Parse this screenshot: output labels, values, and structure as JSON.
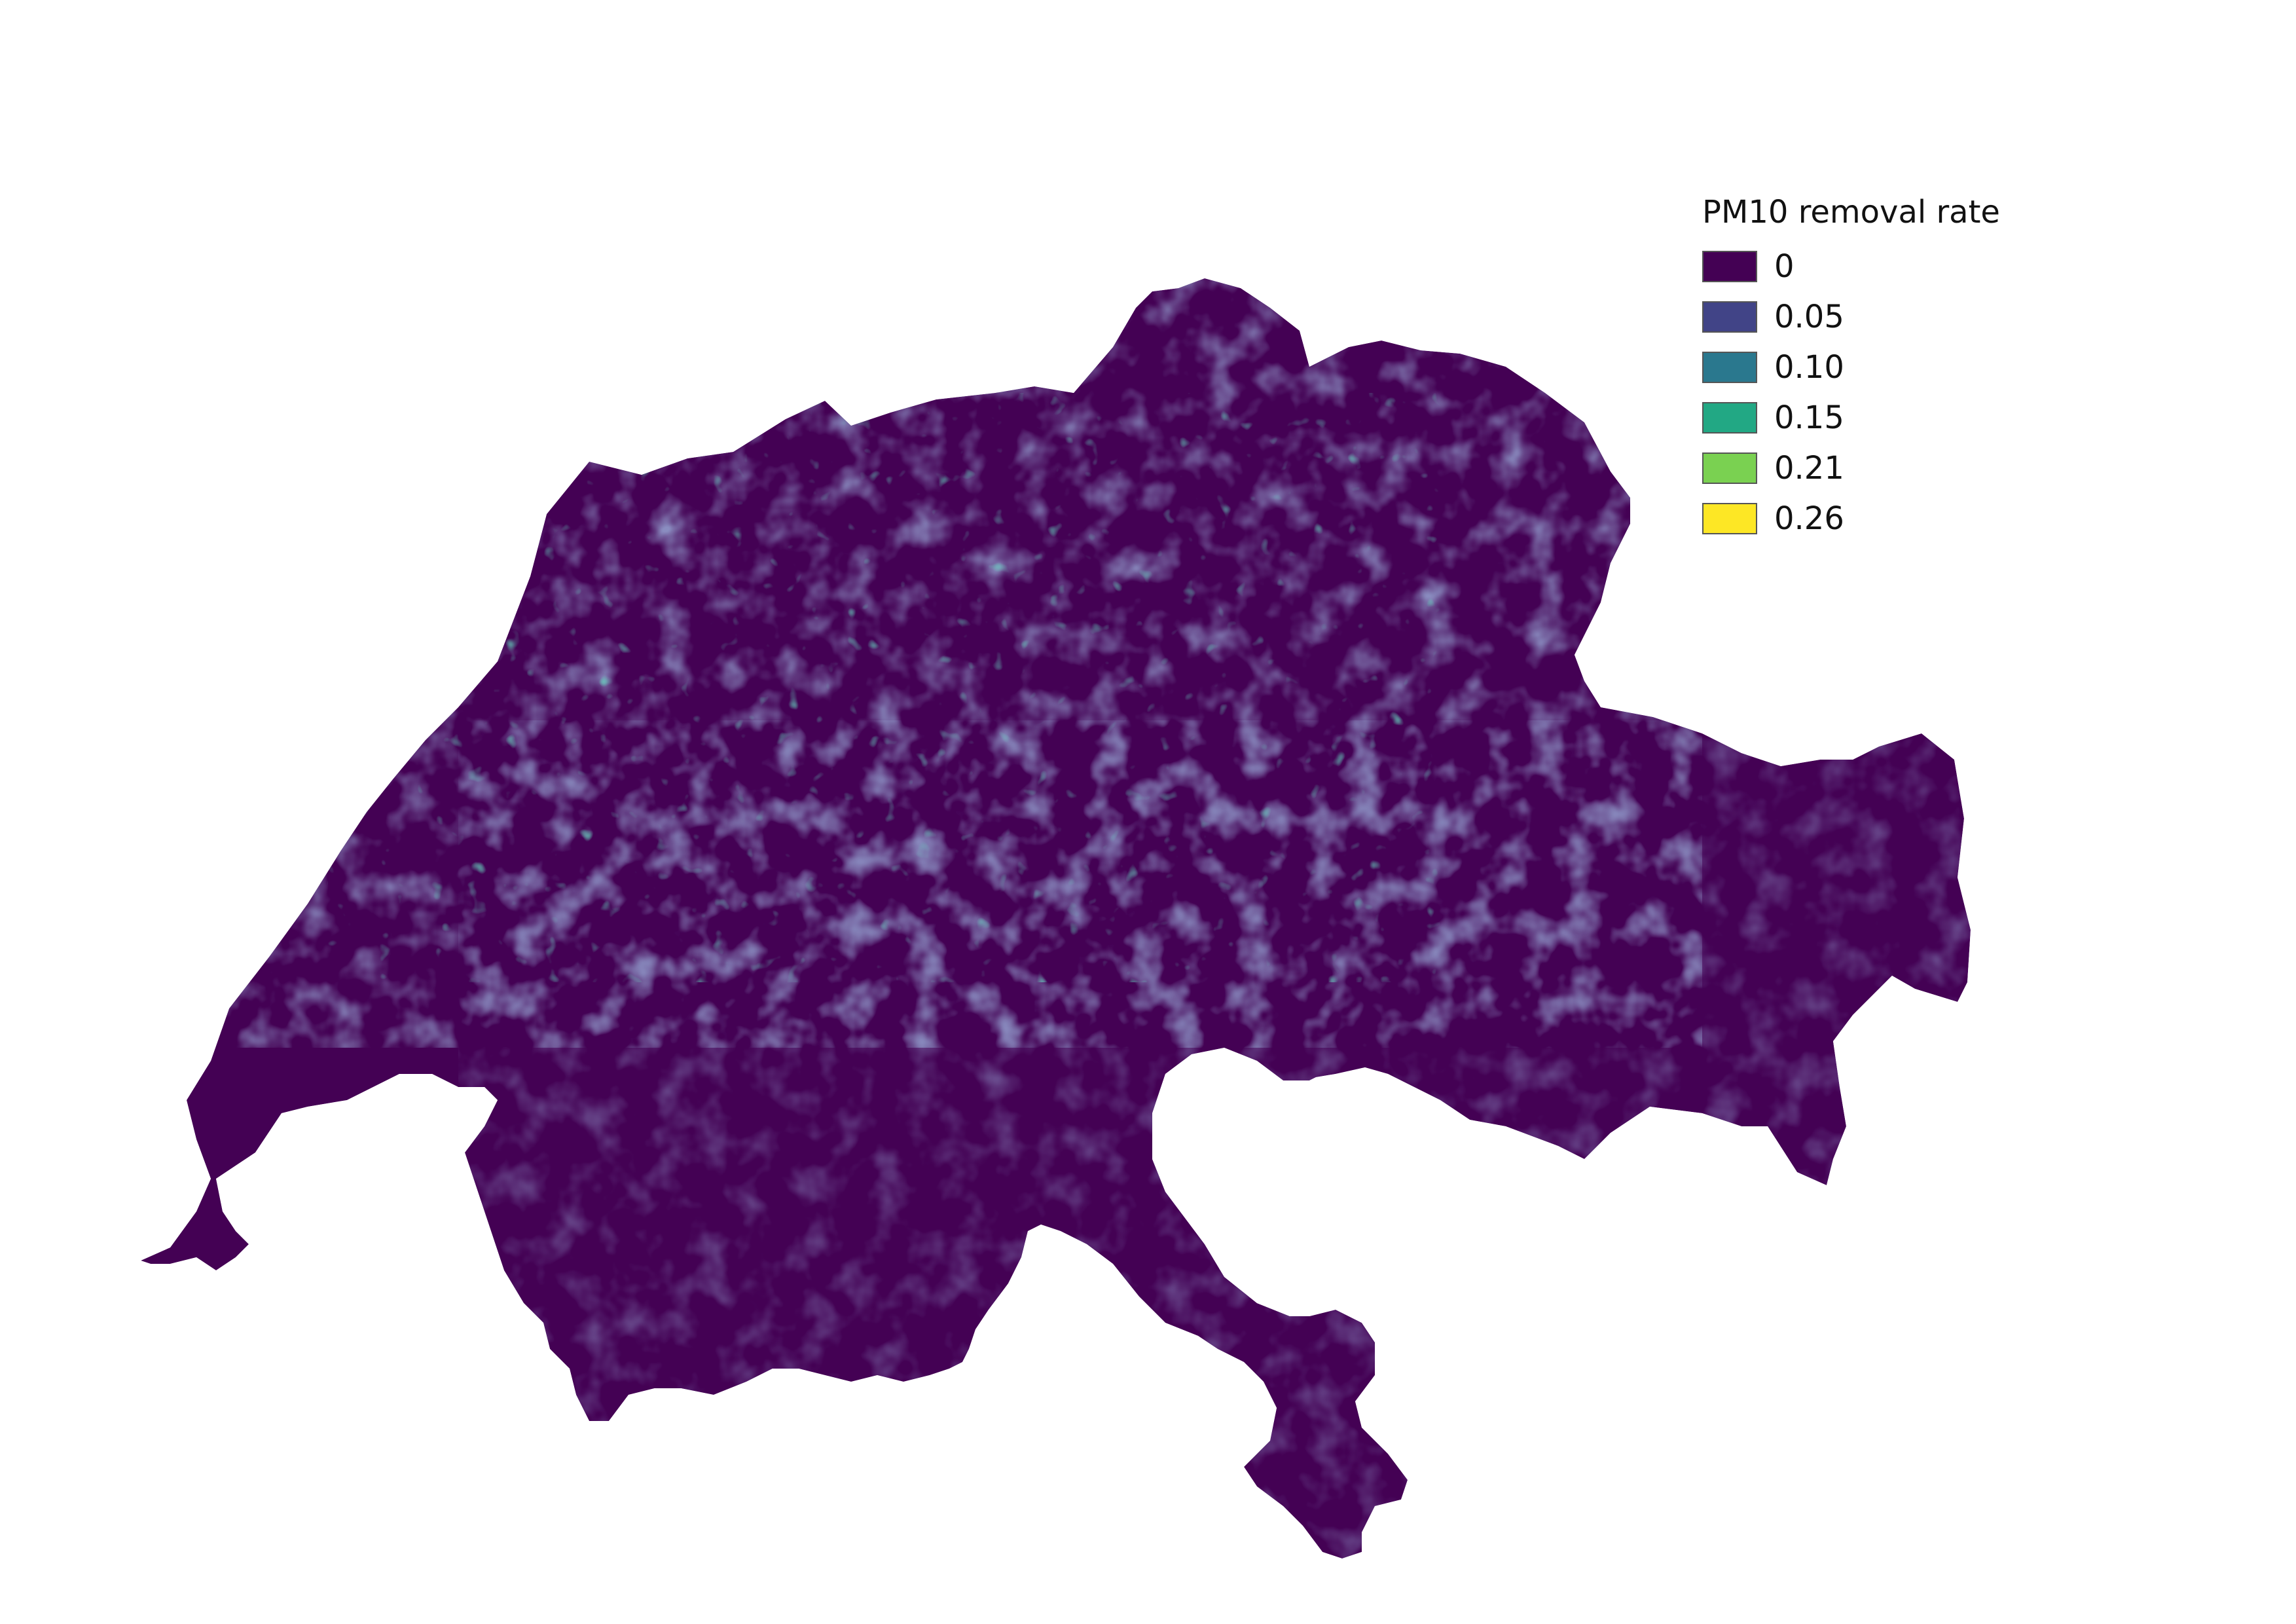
{
  "map": {
    "region": "Switzerland",
    "base_color": "#440154",
    "background": "#ffffff"
  },
  "legend": {
    "title": "PM10 removal rate",
    "placement": "top-right",
    "items": [
      {
        "label": "0",
        "color": "#440154"
      },
      {
        "label": "0.05",
        "color": "#414487"
      },
      {
        "label": "0.10",
        "color": "#2a788e"
      },
      {
        "label": "0.15",
        "color": "#22a884"
      },
      {
        "label": "0.21",
        "color": "#7ad151"
      },
      {
        "label": "0.26",
        "color": "#fde725"
      }
    ]
  }
}
